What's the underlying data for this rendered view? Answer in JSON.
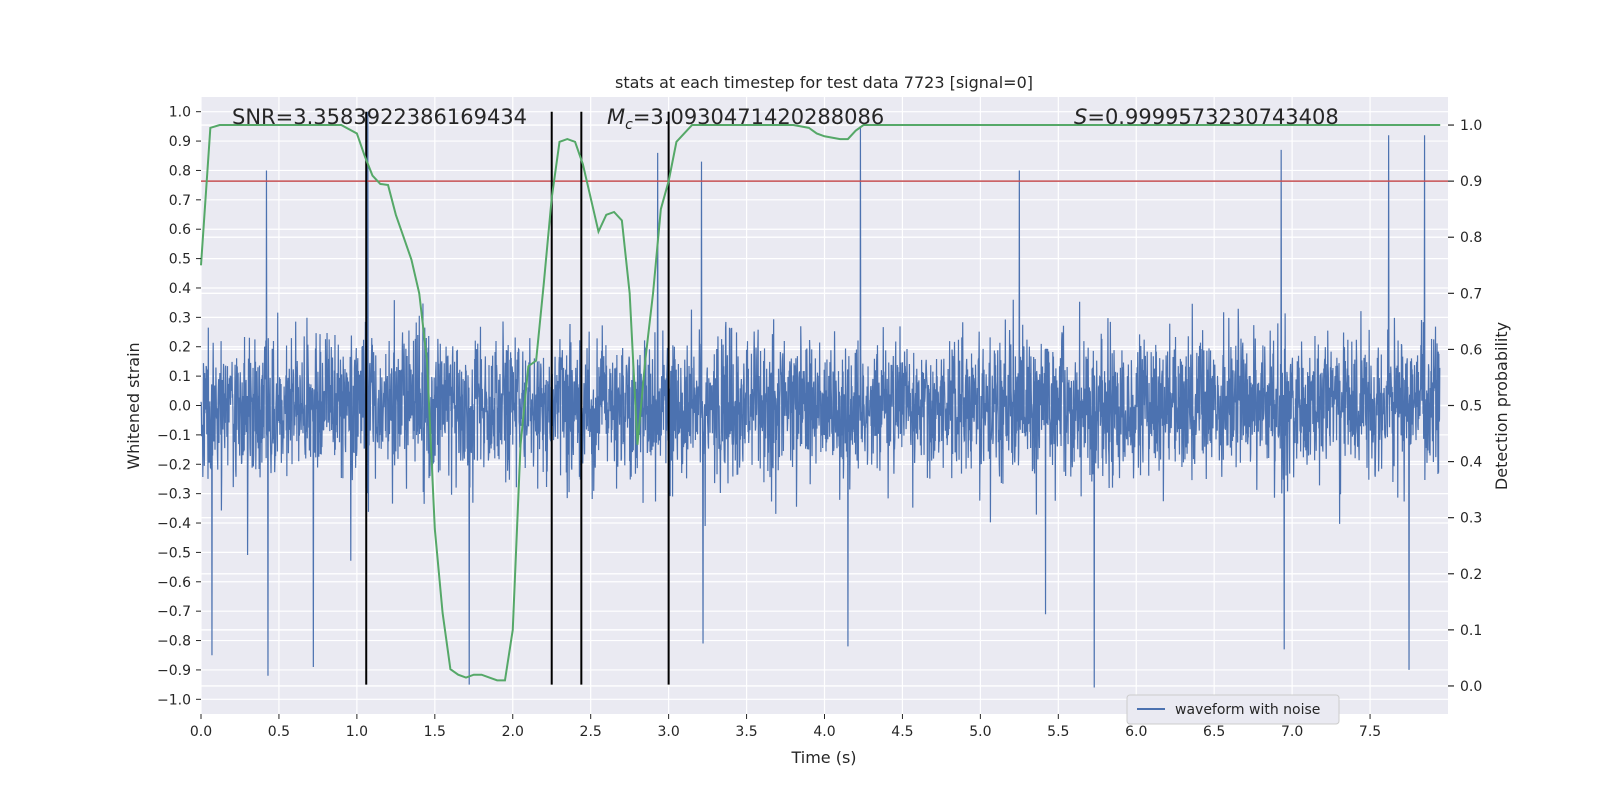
{
  "chart_data": {
    "type": "line",
    "title": "stats at each timestep for test data 7723 [signal=0]",
    "xlabel": "Time (s)",
    "ylabel_left": "Whitened strain",
    "ylabel_right": "Detection probability",
    "xlim": [
      0.0,
      8.0
    ],
    "ylim_left": [
      -1.05,
      1.05
    ],
    "ylim_right": [
      -0.05,
      1.05
    ],
    "x_ticks": [
      0.0,
      0.5,
      1.0,
      1.5,
      2.0,
      2.5,
      3.0,
      3.5,
      4.0,
      4.5,
      5.0,
      5.5,
      6.0,
      6.5,
      7.0,
      7.5
    ],
    "x_tick_labels": [
      "0.0",
      "0.5",
      "1.0",
      "1.5",
      "2.0",
      "2.5",
      "3.0",
      "3.5",
      "4.0",
      "4.5",
      "5.0",
      "5.5",
      "6.0",
      "6.5",
      "7.0",
      "7.5"
    ],
    "y_left_ticks": [
      1.0,
      0.9,
      0.8,
      0.7,
      0.6,
      0.5,
      0.4,
      0.3,
      0.2,
      0.1,
      0.0,
      -0.1,
      -0.2,
      -0.3,
      -0.4,
      -0.5,
      -0.6,
      -0.7,
      -0.8,
      -0.9,
      -1.0
    ],
    "y_left_tick_labels": [
      "1.0",
      "0.9",
      "0.8",
      "0.7",
      "0.6",
      "0.5",
      "0.4",
      "0.3",
      "0.2",
      "0.1",
      "0.0",
      "−0.1",
      "−0.2",
      "−0.3",
      "−0.4",
      "−0.5",
      "−0.6",
      "−0.7",
      "−0.8",
      "−0.9",
      "−1.0"
    ],
    "y_right_ticks": [
      1.0,
      0.9,
      0.8,
      0.7,
      0.6,
      0.5,
      0.4,
      0.3,
      0.2,
      0.1,
      0.0
    ],
    "y_right_tick_labels": [
      "1.0",
      "0.9",
      "0.8",
      "0.7",
      "0.6",
      "0.5",
      "0.4",
      "0.3",
      "0.2",
      "0.1",
      "0.0"
    ],
    "grid": true,
    "legend": {
      "placement": "lower-right",
      "entries": [
        "waveform with noise"
      ]
    },
    "stats": {
      "snr": "SNR=3.3583922386169434",
      "mc_symbol": "M",
      "mc_subscript": "c",
      "mc_value": "=3.0930471420288086",
      "s_symbol": "S",
      "s_value": "=0.9999573230743408"
    },
    "threshold": {
      "axis": "right",
      "value": 0.9,
      "color": "#c44e52"
    },
    "vertical_markers": {
      "x": [
        1.06,
        2.25,
        2.44,
        3.0
      ],
      "ymin": -0.95,
      "ymax": 1.0,
      "color": "#000000"
    },
    "waveform": {
      "name": "waveform with noise",
      "color": "#4c72b0",
      "sample_rate": 512,
      "amplitude_typical": 0.45,
      "extreme_peaks": [
        {
          "x": 1.07,
          "y": 1.0
        },
        {
          "x": 2.25,
          "y": 0.95
        },
        {
          "x": 2.44,
          "y": 0.92
        },
        {
          "x": 2.93,
          "y": 0.86
        },
        {
          "x": 3.21,
          "y": 0.83
        },
        {
          "x": 4.23,
          "y": 0.95
        },
        {
          "x": 6.93,
          "y": 0.87
        },
        {
          "x": 7.62,
          "y": 0.92
        },
        {
          "x": 7.85,
          "y": 0.92
        },
        {
          "x": 0.42,
          "y": 0.8
        },
        {
          "x": 5.25,
          "y": 0.8
        },
        {
          "x": 1.72,
          "y": -0.95
        },
        {
          "x": 5.73,
          "y": -0.96
        },
        {
          "x": 0.43,
          "y": -0.92
        },
        {
          "x": 0.72,
          "y": -0.89
        },
        {
          "x": 7.75,
          "y": -0.9
        },
        {
          "x": 0.07,
          "y": -0.85
        },
        {
          "x": 6.95,
          "y": -0.83
        },
        {
          "x": 4.15,
          "y": -0.82
        },
        {
          "x": 3.22,
          "y": -0.81
        }
      ]
    },
    "probability": {
      "name": "detection probability",
      "color": "#55a868",
      "axis": "right",
      "x": [
        0.0,
        0.06,
        0.12,
        0.3,
        0.6,
        0.9,
        1.0,
        1.05,
        1.1,
        1.15,
        1.2,
        1.25,
        1.3,
        1.35,
        1.4,
        1.45,
        1.5,
        1.55,
        1.6,
        1.65,
        1.7,
        1.75,
        1.8,
        1.85,
        1.9,
        1.95,
        2.0,
        2.05,
        2.1,
        2.15,
        2.2,
        2.25,
        2.3,
        2.35,
        2.4,
        2.45,
        2.5,
        2.55,
        2.6,
        2.65,
        2.7,
        2.75,
        2.8,
        2.85,
        2.9,
        2.95,
        3.0,
        3.05,
        3.1,
        3.15,
        3.2,
        3.5,
        3.8,
        3.9,
        3.95,
        4.0,
        4.1,
        4.15,
        4.2,
        4.25,
        4.3,
        4.5,
        6.0,
        7.0,
        7.95
      ],
      "y": [
        0.75,
        0.995,
        1.0,
        1.0,
        1.0,
        1.0,
        0.985,
        0.945,
        0.91,
        0.895,
        0.893,
        0.84,
        0.8,
        0.76,
        0.7,
        0.58,
        0.28,
        0.13,
        0.03,
        0.02,
        0.015,
        0.02,
        0.02,
        0.015,
        0.01,
        0.01,
        0.1,
        0.43,
        0.57,
        0.58,
        0.72,
        0.87,
        0.97,
        0.975,
        0.97,
        0.93,
        0.87,
        0.81,
        0.84,
        0.845,
        0.83,
        0.7,
        0.43,
        0.58,
        0.7,
        0.85,
        0.9,
        0.97,
        0.985,
        1.0,
        1.0,
        1.0,
        1.0,
        0.995,
        0.985,
        0.98,
        0.975,
        0.975,
        0.99,
        1.0,
        1.0,
        1.0,
        1.0,
        1.0,
        1.0
      ]
    }
  }
}
